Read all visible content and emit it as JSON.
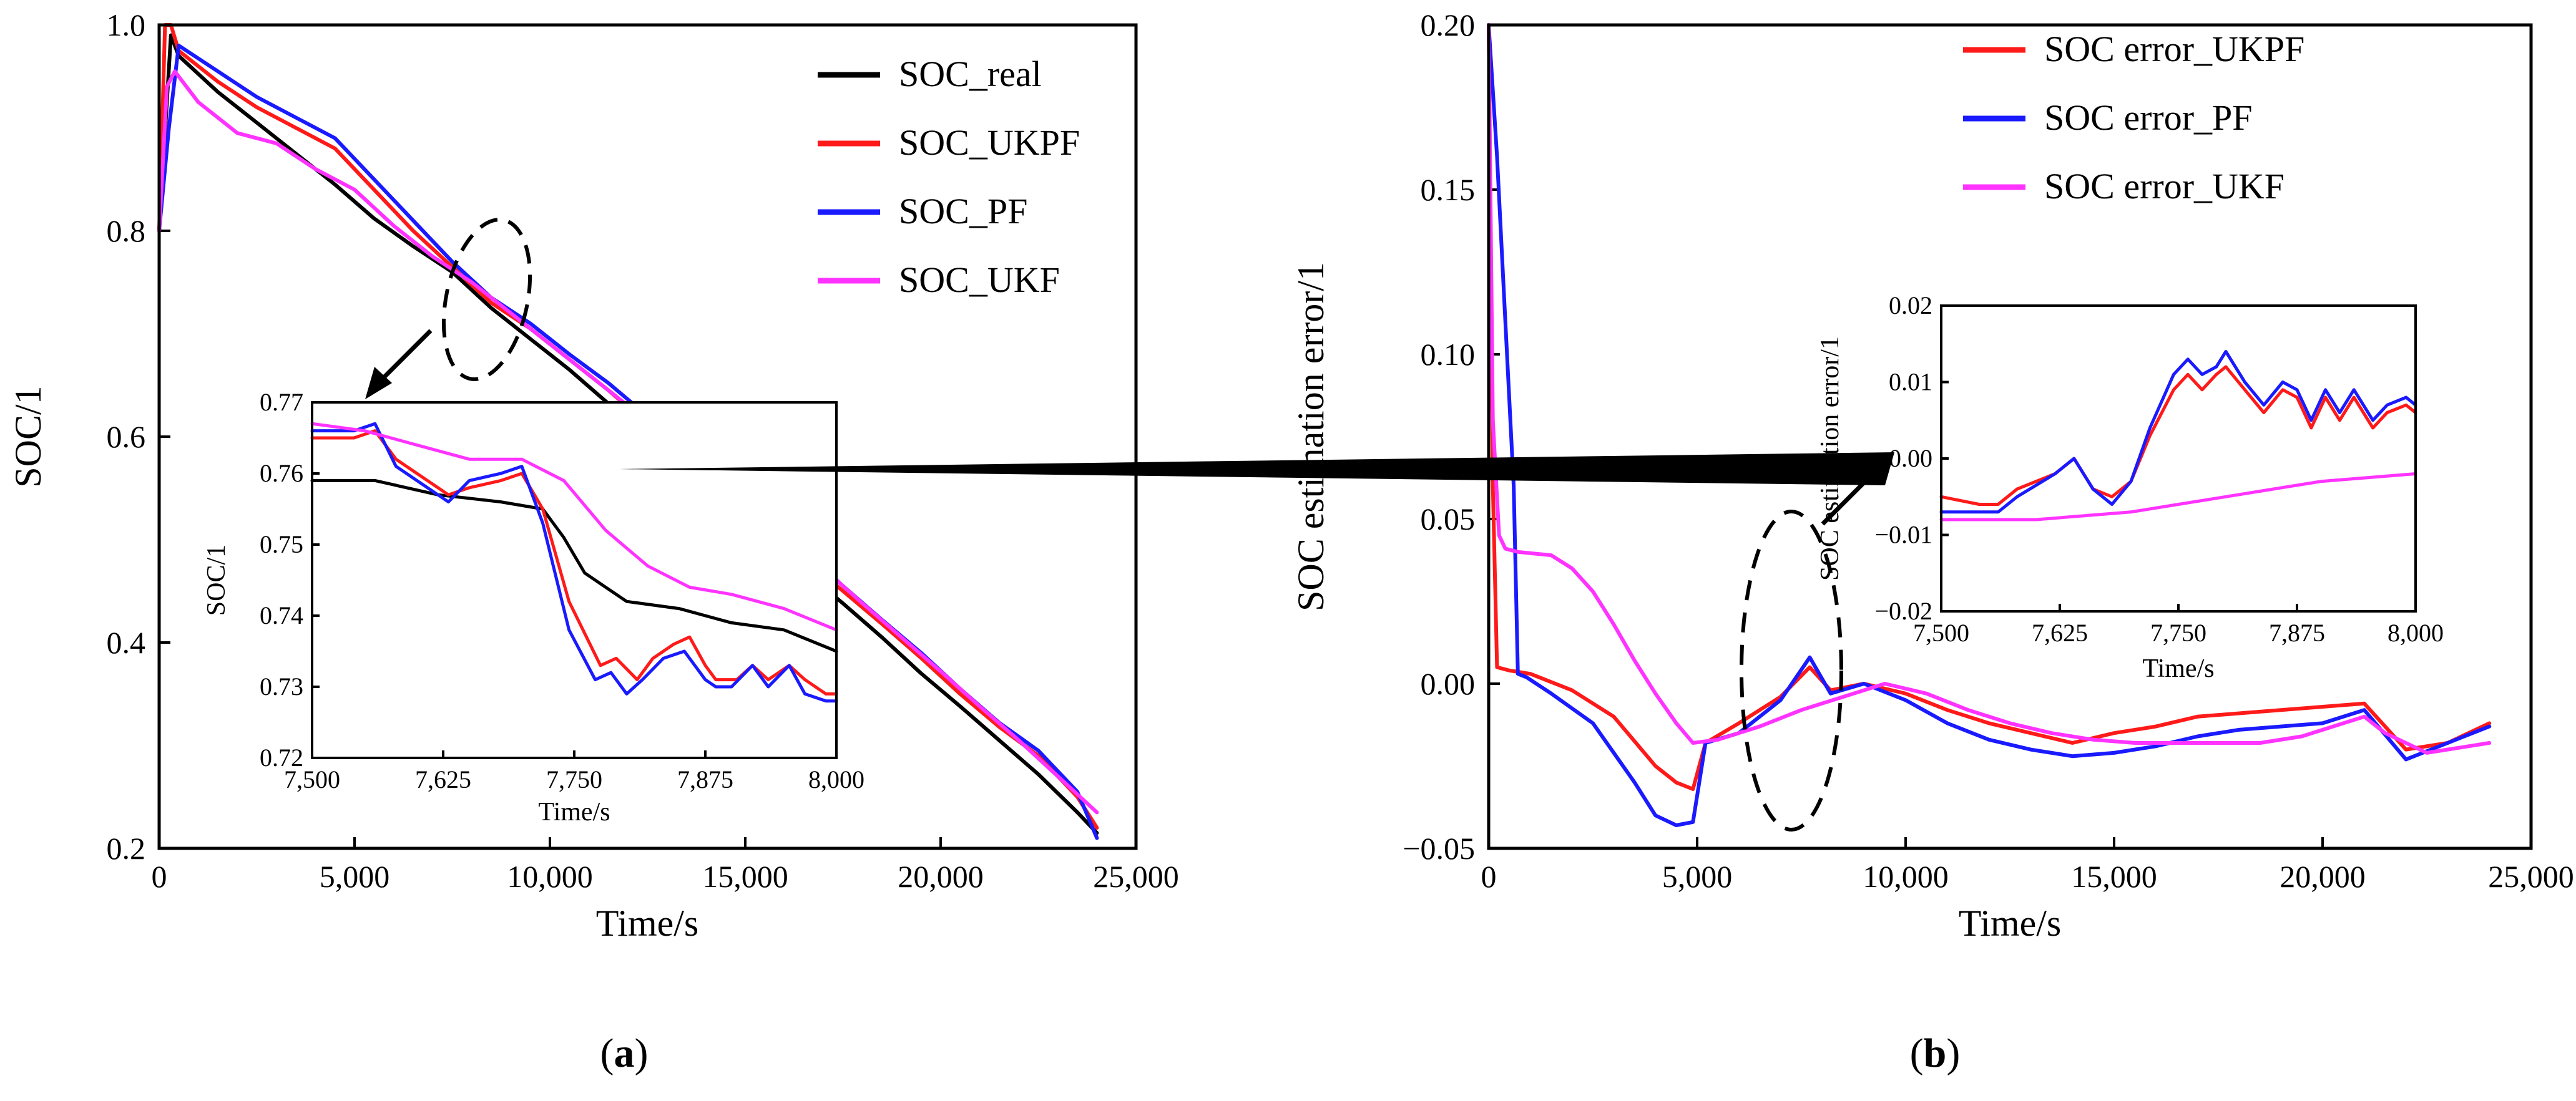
{
  "colors": {
    "real": "#000000",
    "ukpf": "#ff1a1a",
    "pf": "#1a1aff",
    "ukf": "#ff33ff"
  },
  "chart_data": [
    {
      "id": "a",
      "type": "line",
      "panel_label": "(a)",
      "panel_letter": "a",
      "xlabel": "Time/s",
      "ylabel": "SOC/1",
      "xlim": [
        0,
        25000
      ],
      "ylim": [
        0.2,
        1.0
      ],
      "xticks": [
        0,
        5000,
        10000,
        15000,
        20000,
        25000
      ],
      "xtick_labels": [
        "0",
        "5,000",
        "10,000",
        "15,000",
        "20,000",
        "25,000"
      ],
      "yticks": [
        0.2,
        0.4,
        0.6,
        0.8,
        1.0
      ],
      "ytick_labels": [
        "0.2",
        "0.4",
        "0.6",
        "0.8",
        "1.0"
      ],
      "legend": [
        "SOC_real",
        "SOC_UKPF",
        "SOC_PF",
        "SOC_UKF"
      ],
      "legend_position": "top-right",
      "series": [
        {
          "name": "SOC_real",
          "color_key": "real",
          "x": [
            0,
            300,
            500,
            1500,
            2500,
            3500,
            4500,
            5500,
            6500,
            7500,
            8500,
            9500,
            10500,
            11500,
            12500,
            13500,
            14500,
            15500,
            16500,
            17500,
            18500,
            19500,
            20500,
            21500,
            22500,
            23500,
            24000
          ],
          "y": [
            0.8,
            0.99,
            0.97,
            0.935,
            0.905,
            0.875,
            0.845,
            0.812,
            0.785,
            0.76,
            0.725,
            0.695,
            0.665,
            0.632,
            0.6,
            0.568,
            0.535,
            0.502,
            0.47,
            0.438,
            0.405,
            0.37,
            0.338,
            0.305,
            0.272,
            0.235,
            0.215
          ]
        },
        {
          "name": "SOC_UKPF",
          "color_key": "ukpf",
          "x": [
            0,
            150,
            300,
            500,
            1500,
            2500,
            3500,
            4500,
            5500,
            6500,
            7500,
            8500,
            9500,
            10500,
            11500,
            12500,
            13500,
            14500,
            15500,
            16500,
            17500,
            18500,
            19500,
            20500,
            21500,
            22500,
            23500,
            24000
          ],
          "y": [
            0.8,
            1.0,
            1.0,
            0.975,
            0.945,
            0.92,
            0.9,
            0.88,
            0.84,
            0.8,
            0.765,
            0.73,
            0.705,
            0.675,
            0.645,
            0.612,
            0.58,
            0.548,
            0.515,
            0.482,
            0.45,
            0.418,
            0.385,
            0.35,
            0.318,
            0.29,
            0.25,
            0.22
          ]
        },
        {
          "name": "SOC_PF",
          "color_key": "pf",
          "x": [
            0,
            250,
            500,
            1500,
            2500,
            3500,
            4500,
            5500,
            6500,
            7500,
            8500,
            9500,
            10500,
            11500,
            12500,
            13500,
            14500,
            15500,
            16500,
            17500,
            18500,
            19500,
            20500,
            21500,
            22500,
            23500,
            24000
          ],
          "y": [
            0.8,
            0.9,
            0.98,
            0.955,
            0.93,
            0.91,
            0.89,
            0.85,
            0.81,
            0.77,
            0.735,
            0.71,
            0.68,
            0.652,
            0.62,
            0.588,
            0.555,
            0.522,
            0.49,
            0.455,
            0.422,
            0.39,
            0.355,
            0.322,
            0.295,
            0.255,
            0.21
          ]
        },
        {
          "name": "SOC_UKF",
          "color_key": "ukf",
          "x": [
            0,
            200,
            400,
            1000,
            2000,
            3000,
            4000,
            5000,
            6000,
            7000,
            8000,
            9000,
            10000,
            11000,
            12000,
            13000,
            14000,
            15000,
            16000,
            17000,
            18000,
            19000,
            20000,
            21000,
            22000,
            23000,
            24000
          ],
          "y": [
            0.8,
            0.94,
            0.955,
            0.925,
            0.895,
            0.885,
            0.86,
            0.84,
            0.805,
            0.775,
            0.75,
            0.72,
            0.69,
            0.66,
            0.63,
            0.6,
            0.57,
            0.538,
            0.505,
            0.472,
            0.438,
            0.405,
            0.372,
            0.338,
            0.305,
            0.27,
            0.235
          ]
        }
      ],
      "inset": {
        "xlabel": "Time/s",
        "ylabel": "SOC/1",
        "xlim": [
          7500,
          8000
        ],
        "ylim": [
          0.72,
          0.77
        ],
        "xticks": [
          7500,
          7625,
          7750,
          7875,
          8000
        ],
        "xtick_labels": [
          "7,500",
          "7,625",
          "7,750",
          "7,875",
          "8,000"
        ],
        "yticks": [
          0.72,
          0.73,
          0.74,
          0.75,
          0.76,
          0.77
        ],
        "ytick_labels": [
          "0.72",
          "0.73",
          "0.74",
          "0.75",
          "0.76",
          "0.77"
        ],
        "series": [
          {
            "name": "SOC_real",
            "color_key": "real",
            "x": [
              7500,
              7560,
              7620,
              7680,
              7720,
              7740,
              7760,
              7780,
              7800,
              7850,
              7900,
              7950,
              8000
            ],
            "y": [
              0.759,
              0.759,
              0.757,
              0.756,
              0.755,
              0.751,
              0.746,
              0.744,
              0.742,
              0.741,
              0.739,
              0.738,
              0.735
            ]
          },
          {
            "name": "SOC_UKPF",
            "color_key": "ukpf",
            "x": [
              7500,
              7540,
              7560,
              7580,
              7600,
              7630,
              7650,
              7680,
              7700,
              7720,
              7745,
              7775,
              7790,
              7810,
              7825,
              7845,
              7860,
              7875,
              7885,
              7905,
              7920,
              7935,
              7955,
              7970,
              7990,
              8000
            ],
            "y": [
              0.765,
              0.765,
              0.766,
              0.762,
              0.76,
              0.757,
              0.758,
              0.759,
              0.76,
              0.755,
              0.742,
              0.733,
              0.734,
              0.731,
              0.734,
              0.736,
              0.737,
              0.733,
              0.731,
              0.731,
              0.733,
              0.731,
              0.733,
              0.731,
              0.729,
              0.729
            ]
          },
          {
            "name": "SOC_PF",
            "color_key": "pf",
            "x": [
              7500,
              7540,
              7560,
              7580,
              7600,
              7630,
              7650,
              7680,
              7700,
              7720,
              7745,
              7770,
              7785,
              7800,
              7815,
              7835,
              7855,
              7875,
              7885,
              7900,
              7920,
              7935,
              7955,
              7970,
              7990,
              8000
            ],
            "y": [
              0.766,
              0.766,
              0.767,
              0.761,
              0.759,
              0.756,
              0.759,
              0.76,
              0.761,
              0.753,
              0.738,
              0.731,
              0.732,
              0.729,
              0.731,
              0.734,
              0.735,
              0.731,
              0.73,
              0.73,
              0.733,
              0.73,
              0.733,
              0.729,
              0.728,
              0.728
            ]
          },
          {
            "name": "SOC_UKF",
            "color_key": "ukf",
            "x": [
              7500,
              7550,
              7600,
              7650,
              7700,
              7740,
              7780,
              7820,
              7860,
              7900,
              7950,
              8000
            ],
            "y": [
              0.767,
              0.766,
              0.764,
              0.762,
              0.762,
              0.759,
              0.752,
              0.747,
              0.744,
              0.743,
              0.741,
              0.738
            ]
          }
        ]
      }
    },
    {
      "id": "b",
      "type": "line",
      "panel_label": "(b)",
      "panel_letter": "b",
      "xlabel": "Time/s",
      "ylabel": "SOC estimation error/1",
      "xlim": [
        0,
        25000
      ],
      "ylim": [
        -0.05,
        0.2
      ],
      "xticks": [
        0,
        5000,
        10000,
        15000,
        20000,
        25000
      ],
      "xtick_labels": [
        "0",
        "5,000",
        "10,000",
        "15,000",
        "20,000",
        "25,000"
      ],
      "yticks": [
        -0.05,
        0.0,
        0.05,
        0.1,
        0.15,
        0.2
      ],
      "ytick_labels": [
        "−0.05",
        "0.00",
        "0.05",
        "0.10",
        "0.15",
        "0.20"
      ],
      "legend": [
        "SOC error_UKPF",
        "SOC error_PF",
        "SOC error_UKF"
      ],
      "legend_position": "top-right",
      "series": [
        {
          "name": "SOC error_UKPF",
          "color_key": "ukpf",
          "x": [
            0,
            100,
            200,
            500,
            1000,
            2000,
            3000,
            4000,
            4500,
            4900,
            5200,
            6000,
            7000,
            7700,
            8200,
            9000,
            10000,
            11000,
            12000,
            13000,
            14000,
            15000,
            16000,
            17000,
            18000,
            19000,
            20000,
            21000,
            22000,
            23000,
            24000
          ],
          "y": [
            0.2,
            0.06,
            0.005,
            0.004,
            0.003,
            -0.002,
            -0.01,
            -0.025,
            -0.03,
            -0.032,
            -0.018,
            -0.012,
            -0.004,
            0.005,
            -0.002,
            0.0,
            -0.003,
            -0.008,
            -0.012,
            -0.015,
            -0.018,
            -0.015,
            -0.013,
            -0.01,
            -0.009,
            -0.008,
            -0.007,
            -0.006,
            -0.02,
            -0.018,
            -0.012
          ]
        },
        {
          "name": "SOC error_PF",
          "color_key": "pf",
          "x": [
            0,
            200,
            400,
            600,
            700,
            900,
            1500,
            2500,
            3500,
            4000,
            4500,
            4900,
            5200,
            6000,
            7000,
            7700,
            8200,
            9000,
            10000,
            11000,
            12000,
            13000,
            14000,
            15000,
            16000,
            17000,
            18000,
            19000,
            20000,
            21000,
            22000,
            23000,
            24000
          ],
          "y": [
            0.2,
            0.16,
            0.11,
            0.06,
            0.003,
            0.002,
            -0.003,
            -0.012,
            -0.03,
            -0.04,
            -0.043,
            -0.042,
            -0.018,
            -0.015,
            -0.005,
            0.008,
            -0.003,
            0.0,
            -0.005,
            -0.012,
            -0.017,
            -0.02,
            -0.022,
            -0.021,
            -0.019,
            -0.016,
            -0.014,
            -0.013,
            -0.012,
            -0.008,
            -0.023,
            -0.018,
            -0.013
          ]
        },
        {
          "name": "SOC error_UKF",
          "color_key": "ukf",
          "x": [
            0,
            100,
            250,
            400,
            700,
            1500,
            2000,
            2500,
            3000,
            3500,
            4000,
            4500,
            4900,
            5500,
            6500,
            7500,
            8500,
            9500,
            10500,
            11500,
            12500,
            13500,
            14500,
            15500,
            16500,
            17500,
            18500,
            19500,
            20500,
            21000,
            21500,
            22500,
            23500,
            24000
          ],
          "y": [
            0.2,
            0.08,
            0.045,
            0.041,
            0.04,
            0.039,
            0.035,
            0.028,
            0.018,
            0.007,
            -0.003,
            -0.012,
            -0.018,
            -0.017,
            -0.013,
            -0.008,
            -0.004,
            0.0,
            -0.003,
            -0.008,
            -0.012,
            -0.015,
            -0.017,
            -0.018,
            -0.018,
            -0.018,
            -0.018,
            -0.016,
            -0.012,
            -0.01,
            -0.015,
            -0.021,
            -0.019,
            -0.018
          ]
        }
      ],
      "inset": {
        "xlabel": "Time/s",
        "ylabel": "SOC estimation error/1",
        "xlim": [
          7500,
          8000
        ],
        "ylim": [
          -0.02,
          0.02
        ],
        "xticks": [
          7500,
          7625,
          7750,
          7875,
          8000
        ],
        "xtick_labels": [
          "7,500",
          "7,625",
          "7,750",
          "7,875",
          "8,000"
        ],
        "yticks": [
          -0.02,
          -0.01,
          0.0,
          0.01,
          0.02
        ],
        "ytick_labels": [
          "−0.02",
          "−0.01",
          "0.00",
          "0.01",
          "0.02"
        ],
        "series": [
          {
            "name": "SOC error_UKPF",
            "color_key": "ukpf",
            "x": [
              7500,
              7540,
              7560,
              7580,
              7620,
              7640,
              7660,
              7680,
              7700,
              7720,
              7745,
              7760,
              7775,
              7790,
              7800,
              7820,
              7840,
              7860,
              7875,
              7890,
              7905,
              7920,
              7935,
              7955,
              7970,
              7990,
              8000
            ],
            "y": [
              -0.005,
              -0.006,
              -0.006,
              -0.004,
              -0.002,
              0.0,
              -0.004,
              -0.005,
              -0.003,
              0.003,
              0.009,
              0.011,
              0.009,
              0.011,
              0.012,
              0.009,
              0.006,
              0.009,
              0.008,
              0.004,
              0.008,
              0.005,
              0.008,
              0.004,
              0.006,
              0.007,
              0.006
            ]
          },
          {
            "name": "SOC error_PF",
            "color_key": "pf",
            "x": [
              7500,
              7540,
              7560,
              7580,
              7620,
              7640,
              7660,
              7680,
              7700,
              7720,
              7745,
              7760,
              7775,
              7790,
              7800,
              7820,
              7840,
              7860,
              7875,
              7890,
              7905,
              7920,
              7935,
              7955,
              7970,
              7990,
              8000
            ],
            "y": [
              -0.007,
              -0.007,
              -0.007,
              -0.005,
              -0.002,
              0.0,
              -0.004,
              -0.006,
              -0.003,
              0.004,
              0.011,
              0.013,
              0.011,
              0.012,
              0.014,
              0.01,
              0.007,
              0.01,
              0.009,
              0.005,
              0.009,
              0.006,
              0.009,
              0.005,
              0.007,
              0.008,
              0.007
            ]
          },
          {
            "name": "SOC error_UKF",
            "color_key": "ukf",
            "x": [
              7500,
              7600,
              7700,
              7750,
              7800,
              7850,
              7900,
              7950,
              8000
            ],
            "y": [
              -0.008,
              -0.008,
              -0.007,
              -0.006,
              -0.005,
              -0.004,
              -0.003,
              -0.0025,
              -0.002
            ]
          }
        ]
      }
    }
  ]
}
